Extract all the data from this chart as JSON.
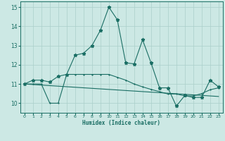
{
  "xlabel": "Humidex (Indice chaleur)",
  "background_color": "#cce8e4",
  "grid_color": "#aacfca",
  "line_color": "#1a6e64",
  "xlim": [
    -0.5,
    23.5
  ],
  "ylim": [
    9.5,
    15.3
  ],
  "xticks": [
    0,
    1,
    2,
    3,
    4,
    5,
    6,
    7,
    8,
    9,
    10,
    11,
    12,
    13,
    14,
    15,
    16,
    17,
    18,
    19,
    20,
    21,
    22,
    23
  ],
  "yticks": [
    10,
    11,
    12,
    13,
    14,
    15
  ],
  "line1_x": [
    0,
    1,
    2,
    3,
    4,
    5,
    6,
    7,
    8,
    9,
    10,
    11,
    12,
    13,
    14,
    15,
    16,
    17,
    18,
    19,
    20,
    21,
    22,
    23
  ],
  "line1_y": [
    11.0,
    11.2,
    11.2,
    11.1,
    11.4,
    11.5,
    12.5,
    12.6,
    13.0,
    13.8,
    15.0,
    14.35,
    12.1,
    12.05,
    13.3,
    12.1,
    10.8,
    10.8,
    9.85,
    10.4,
    10.3,
    10.3,
    11.2,
    10.85
  ],
  "line2_x": [
    0,
    1,
    2,
    3,
    4,
    5,
    6,
    7,
    8,
    9,
    10,
    11,
    12,
    13,
    14,
    15,
    16,
    17,
    18,
    19,
    20,
    21,
    22,
    23
  ],
  "line2_y": [
    11.0,
    11.0,
    11.0,
    10.0,
    10.0,
    11.5,
    11.5,
    11.5,
    11.5,
    11.5,
    11.5,
    11.35,
    11.2,
    11.0,
    10.85,
    10.72,
    10.6,
    10.48,
    10.48,
    10.38,
    10.38,
    10.5,
    10.7,
    10.8
  ],
  "line3_x": [
    0,
    23
  ],
  "line3_y": [
    11.0,
    10.35
  ]
}
